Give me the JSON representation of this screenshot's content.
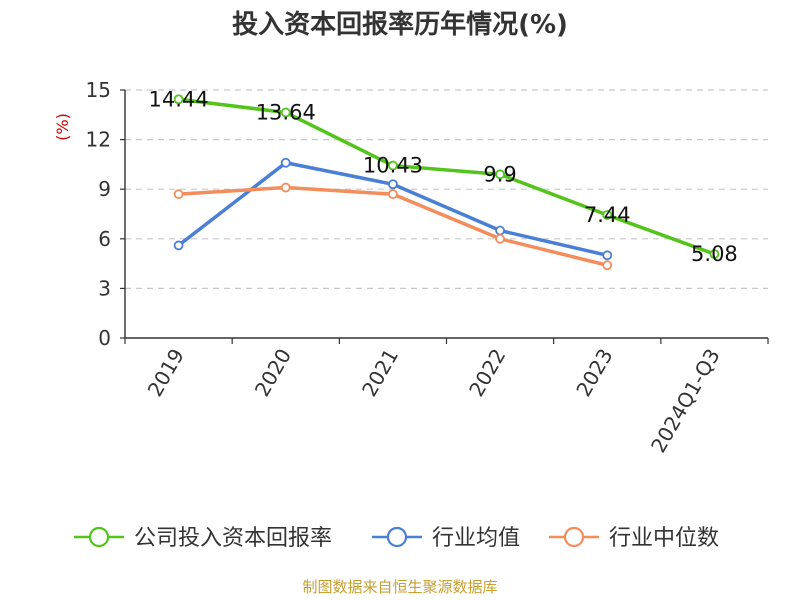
{
  "chart_data": {
    "type": "line",
    "title": "投入资本回报率历年情况(%)",
    "ylabel": "(%)",
    "categories": [
      "2019",
      "2020",
      "2021",
      "2022",
      "2023",
      "2024Q1-Q3"
    ],
    "ylim": [
      0,
      15
    ],
    "yticks": [
      0,
      3,
      6,
      9,
      12,
      15
    ],
    "grid": "horizontal dashed",
    "legend_position": "bottom",
    "series": [
      {
        "name": "公司投入资本回报率",
        "color": "#52c41a",
        "values": [
          14.44,
          13.64,
          10.43,
          9.9,
          7.44,
          5.08
        ],
        "data_labels": [
          "14.44",
          "13.64",
          "10.43",
          "9.9",
          "7.44",
          "5.08"
        ]
      },
      {
        "name": "行业均值",
        "color": "#4a7fd6",
        "values": [
          5.6,
          10.6,
          9.3,
          6.5,
          5.0,
          null
        ]
      },
      {
        "name": "行业中位数",
        "color": "#f48c5c",
        "values": [
          8.7,
          9.1,
          8.7,
          6.0,
          4.4,
          null
        ]
      }
    ],
    "source": "制图数据来自恒生聚源数据库"
  }
}
